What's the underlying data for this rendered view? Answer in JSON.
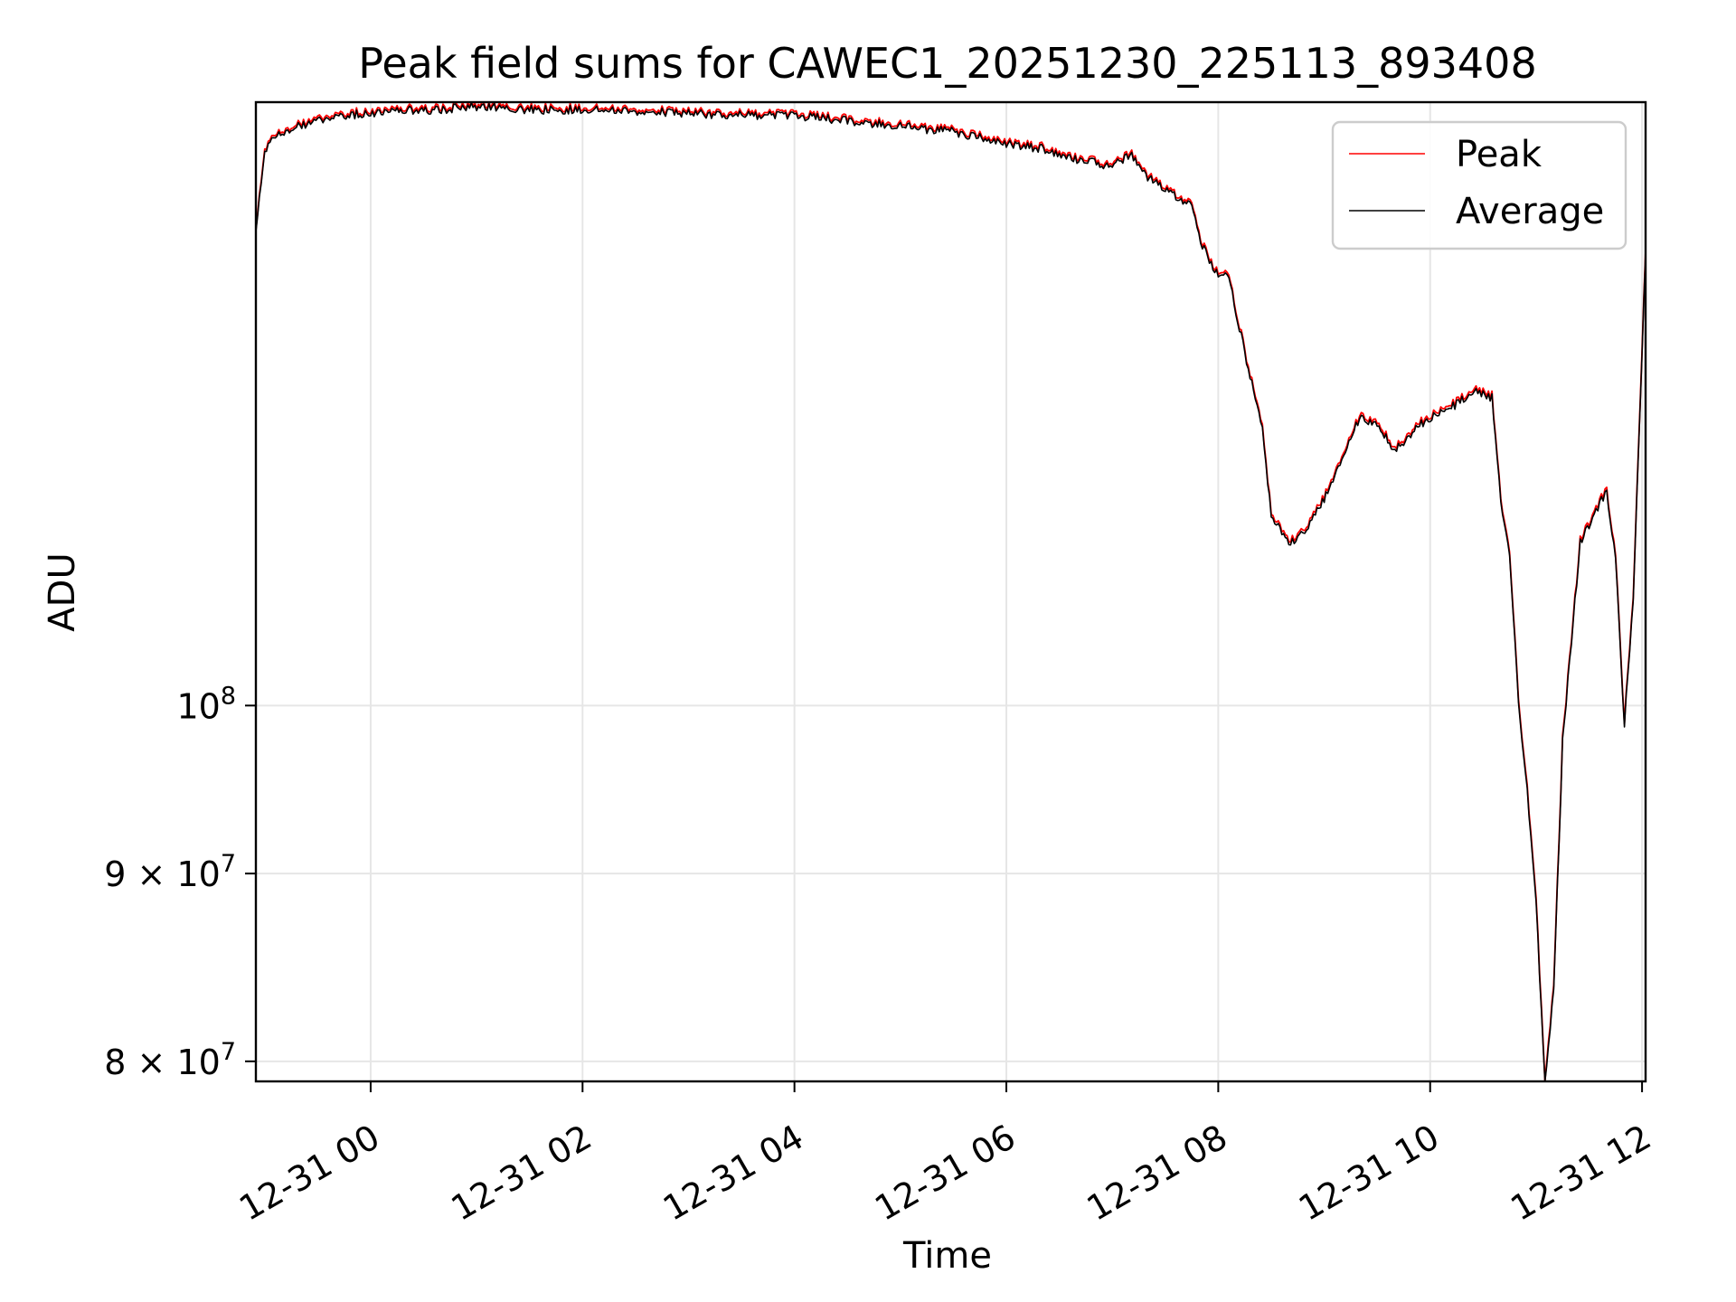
{
  "chart_data": {
    "type": "line",
    "title": "Peak field sums for CAWEC1_20251230_225113_893408",
    "xlabel": "Time",
    "ylabel": "ADU",
    "y_scale": "log",
    "ylim": [
      79000000,
      146000000
    ],
    "xlim": [
      "2025-12-30T22:55",
      "2025-12-31T12:02"
    ],
    "x_ticks": [
      {
        "value": "2025-12-31T00:00",
        "label": "12-31 00"
      },
      {
        "value": "2025-12-31T02:00",
        "label": "12-31 02"
      },
      {
        "value": "2025-12-31T04:00",
        "label": "12-31 04"
      },
      {
        "value": "2025-12-31T06:00",
        "label": "12-31 06"
      },
      {
        "value": "2025-12-31T08:00",
        "label": "12-31 08"
      },
      {
        "value": "2025-12-31T10:00",
        "label": "12-31 10"
      },
      {
        "value": "2025-12-31T12:00",
        "label": "12-31 12"
      }
    ],
    "y_ticks": [
      {
        "value": 80000000,
        "label": "8 × 10",
        "exp": "7"
      },
      {
        "value": 90000000,
        "label": "9 × 10",
        "exp": "7"
      },
      {
        "value": 100000000,
        "label": "10",
        "exp": "8"
      }
    ],
    "grid": true,
    "legend": "upper-right",
    "series": [
      {
        "name": "Peak",
        "color": "#ff0000",
        "x": [
          "2025-12-30T22:55",
          "2025-12-30T23:00",
          "2025-12-30T23:10",
          "2025-12-30T23:20",
          "2025-12-30T23:30",
          "2025-12-30T23:45",
          "2025-12-31T00:00",
          "2025-12-31T00:20",
          "2025-12-31T00:40",
          "2025-12-31T01:00",
          "2025-12-31T01:30",
          "2025-12-31T02:00",
          "2025-12-31T02:30",
          "2025-12-31T03:00",
          "2025-12-31T03:30",
          "2025-12-31T04:00",
          "2025-12-31T04:30",
          "2025-12-31T05:00",
          "2025-12-31T05:30",
          "2025-12-31T06:00",
          "2025-12-31T06:20",
          "2025-12-31T06:40",
          "2025-12-31T07:00",
          "2025-12-31T07:10",
          "2025-12-31T07:20",
          "2025-12-31T07:35",
          "2025-12-31T07:45",
          "2025-12-31T07:50",
          "2025-12-31T08:00",
          "2025-12-31T08:05",
          "2025-12-31T08:15",
          "2025-12-31T08:25",
          "2025-12-31T08:30",
          "2025-12-31T08:40",
          "2025-12-31T08:50",
          "2025-12-31T09:00",
          "2025-12-31T09:10",
          "2025-12-31T09:20",
          "2025-12-31T09:30",
          "2025-12-31T09:40",
          "2025-12-31T09:55",
          "2025-12-31T10:00",
          "2025-12-31T10:15",
          "2025-12-31T10:25",
          "2025-12-31T10:35",
          "2025-12-31T10:40",
          "2025-12-31T10:45",
          "2025-12-31T10:50",
          "2025-12-31T10:55",
          "2025-12-31T11:00",
          "2025-12-31T11:05",
          "2025-12-31T11:10",
          "2025-12-31T11:15",
          "2025-12-31T11:25",
          "2025-12-31T11:35",
          "2025-12-31T11:40",
          "2025-12-31T11:45",
          "2025-12-31T11:50",
          "2025-12-31T11:55",
          "2025-12-31T12:02"
        ],
        "values": [
          135000000,
          142000000,
          143500000,
          144000000,
          144500000,
          145000000,
          145200000,
          145500000,
          145500000,
          145800000,
          145500000,
          145500000,
          145300000,
          145200000,
          145000000,
          145000000,
          144500000,
          144000000,
          143500000,
          142500000,
          142000000,
          141000000,
          140500000,
          141500000,
          139500000,
          138000000,
          137000000,
          134000000,
          131000000,
          131500000,
          125000000,
          119000000,
          113000000,
          110800000,
          112000000,
          114000000,
          117000000,
          120000000,
          119500000,
          117500000,
          119500000,
          120000000,
          121000000,
          122000000,
          121500000,
          114000000,
          110000000,
          100500000,
          95000000,
          88500000,
          79000000,
          84000000,
          98000000,
          111000000,
          113500000,
          114500000,
          110000000,
          99000000,
          107000000,
          133000000
        ]
      },
      {
        "name": "Average",
        "color": "#000000",
        "x": [
          "2025-12-30T22:55",
          "2025-12-30T23:00",
          "2025-12-30T23:10",
          "2025-12-30T23:20",
          "2025-12-30T23:30",
          "2025-12-30T23:45",
          "2025-12-31T00:00",
          "2025-12-31T00:20",
          "2025-12-31T00:40",
          "2025-12-31T01:00",
          "2025-12-31T01:30",
          "2025-12-31T02:00",
          "2025-12-31T02:30",
          "2025-12-31T03:00",
          "2025-12-31T03:30",
          "2025-12-31T04:00",
          "2025-12-31T04:30",
          "2025-12-31T05:00",
          "2025-12-31T05:30",
          "2025-12-31T06:00",
          "2025-12-31T06:20",
          "2025-12-31T06:40",
          "2025-12-31T07:00",
          "2025-12-31T07:10",
          "2025-12-31T07:20",
          "2025-12-31T07:35",
          "2025-12-31T07:45",
          "2025-12-31T07:50",
          "2025-12-31T08:00",
          "2025-12-31T08:05",
          "2025-12-31T08:15",
          "2025-12-31T08:25",
          "2025-12-31T08:30",
          "2025-12-31T08:40",
          "2025-12-31T08:50",
          "2025-12-31T09:00",
          "2025-12-31T09:10",
          "2025-12-31T09:20",
          "2025-12-31T09:30",
          "2025-12-31T09:40",
          "2025-12-31T09:55",
          "2025-12-31T10:00",
          "2025-12-31T10:15",
          "2025-12-31T10:25",
          "2025-12-31T10:35",
          "2025-12-31T10:40",
          "2025-12-31T10:45",
          "2025-12-31T10:50",
          "2025-12-31T10:55",
          "2025-12-31T11:00",
          "2025-12-31T11:05",
          "2025-12-31T11:10",
          "2025-12-31T11:15",
          "2025-12-31T11:25",
          "2025-12-31T11:35",
          "2025-12-31T11:40",
          "2025-12-31T11:45",
          "2025-12-31T11:50",
          "2025-12-31T11:55",
          "2025-12-31T12:02"
        ],
        "values": [
          134800000,
          141800000,
          143300000,
          143800000,
          144300000,
          144800000,
          145000000,
          145300000,
          145300000,
          145600000,
          145300000,
          145300000,
          145100000,
          145000000,
          144800000,
          144800000,
          144300000,
          143800000,
          143300000,
          142300000,
          141800000,
          140800000,
          140300000,
          141300000,
          139300000,
          137800000,
          136800000,
          133800000,
          130800000,
          131300000,
          124800000,
          118800000,
          112800000,
          110600000,
          111800000,
          113800000,
          116800000,
          119800000,
          119300000,
          117300000,
          119300000,
          119800000,
          120800000,
          121800000,
          121300000,
          113800000,
          109800000,
          100300000,
          94800000,
          88300000,
          78800000,
          83800000,
          97800000,
          110800000,
          113300000,
          114300000,
          109800000,
          98800000,
          106800000,
          132800000
        ]
      }
    ]
  }
}
